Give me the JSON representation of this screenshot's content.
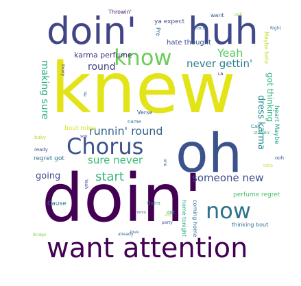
{
  "words": [
    {
      "text": "knew",
      "color": "#e3e418",
      "vertical": false
    },
    {
      "text": "doin'",
      "color": "#440154",
      "vertical": false
    },
    {
      "text": "oh",
      "color": "#3b528b",
      "vertical": false
    },
    {
      "text": "doin'",
      "color": "#414487",
      "vertical": false
    },
    {
      "text": "huh",
      "color": "#3e4a89",
      "vertical": false
    },
    {
      "text": "want attention",
      "color": "#440154",
      "vertical": false
    },
    {
      "text": "Chorus",
      "color": "#3b518b",
      "vertical": false
    },
    {
      "text": "know",
      "color": "#6ccd5a",
      "vertical": false
    },
    {
      "text": "now",
      "color": "#2c728e",
      "vertical": false
    },
    {
      "text": "runnin' round",
      "color": "#33638d",
      "vertical": false
    },
    {
      "text": "never gettin'",
      "color": "#297b8e",
      "vertical": false
    },
    {
      "text": "Yeah",
      "color": "#5ec962",
      "vertical": false
    },
    {
      "text": "start",
      "color": "#35b779",
      "vertical": false
    },
    {
      "text": "someone new",
      "color": "#3e4989",
      "vertical": false
    },
    {
      "text": "sure never",
      "color": "#3bbb75",
      "vertical": false
    },
    {
      "text": "round",
      "color": "#424086",
      "vertical": false
    },
    {
      "text": "going",
      "color": "#3f4788",
      "vertical": false
    },
    {
      "text": "making sure",
      "color": "#26ad81",
      "vertical": true
    },
    {
      "text": "dress karma",
      "color": "#238a8d",
      "vertical": true
    },
    {
      "text": "got thinking",
      "color": "#2fb47c",
      "vertical": true
    },
    {
      "text": "karma perfume",
      "color": "#46337f",
      "vertical": false
    },
    {
      "text": "hate thought",
      "color": "#3b518b",
      "vertical": false
    },
    {
      "text": "ya expect",
      "color": "#3d4e8a",
      "vertical": false
    },
    {
      "text": "want",
      "color": "#39568c",
      "vertical": false
    },
    {
      "text": "Throwin'",
      "color": "#482475",
      "vertical": false
    },
    {
      "text": "face",
      "color": "#2a768e",
      "vertical": false
    },
    {
      "text": "ooh",
      "color": "#8fd744",
      "vertical": false
    },
    {
      "text": "Maybe hate",
      "color": "#bddf26",
      "vertical": true
    },
    {
      "text": "Right",
      "color": "#31688e",
      "vertical": false
    },
    {
      "text": "Pre",
      "color": "#31688e",
      "vertical": true
    },
    {
      "text": "Every",
      "color": "#482878",
      "vertical": true
    },
    {
      "text": "LA",
      "color": "#471164",
      "vertical": false
    },
    {
      "text": "heart Maybe",
      "color": "#1f9a8a",
      "vertical": true
    },
    {
      "text": "Verse",
      "color": "#3b528b",
      "vertical": false
    },
    {
      "text": "name",
      "color": "#2e6f8e",
      "vertical": false
    },
    {
      "text": "Call",
      "color": "#2a788e",
      "vertical": false
    },
    {
      "text": "standin'",
      "color": "#1fa088",
      "vertical": false
    },
    {
      "text": "bout mine",
      "color": "#d8e219",
      "vertical": false
    },
    {
      "text": "baby",
      "color": "#b5de2b",
      "vertical": false
    },
    {
      "text": "son",
      "color": "#453781",
      "vertical": false
    },
    {
      "text": "ready",
      "color": "#3f4788",
      "vertical": false
    },
    {
      "text": "regret got",
      "color": "#2d718e",
      "vertical": false
    },
    {
      "text": "ooh",
      "color": "#3b518b",
      "vertical": false
    },
    {
      "text": "Intro",
      "color": "#b5de2b",
      "vertical": false
    },
    {
      "text": "one",
      "color": "#31688e",
      "vertical": true
    },
    {
      "text": "perfume regret",
      "color": "#4ac16d",
      "vertical": false
    },
    {
      "text": "Cause",
      "color": "#2c728e",
      "vertical": false
    },
    {
      "text": "Outro",
      "color": "#20928c",
      "vertical": false
    },
    {
      "text": "Yeah",
      "color": "#472d7b",
      "vertical": true
    },
    {
      "text": "dirt",
      "color": "#22a785",
      "vertical": false
    },
    {
      "text": "party",
      "color": "#3e4989",
      "vertical": false
    },
    {
      "text": "home tonight",
      "color": "#22a884",
      "vertical": true
    },
    {
      "text": "coming home",
      "color": "#2c728e",
      "vertical": true
    },
    {
      "text": "thinking bout",
      "color": "#2e6e8e",
      "vertical": false
    },
    {
      "text": "hmm",
      "color": "#3e4989",
      "vertical": false
    },
    {
      "text": "way",
      "color": "#d0e11c",
      "vertical": false
    },
    {
      "text": "love",
      "color": "#32658e",
      "vertical": false
    },
    {
      "text": "already",
      "color": "#31688e",
      "vertical": false
    },
    {
      "text": "Bridge",
      "color": "#81d34d",
      "vertical": false
    },
    {
      "text": "lie",
      "color": "#3b528b",
      "vertical": true
    }
  ]
}
